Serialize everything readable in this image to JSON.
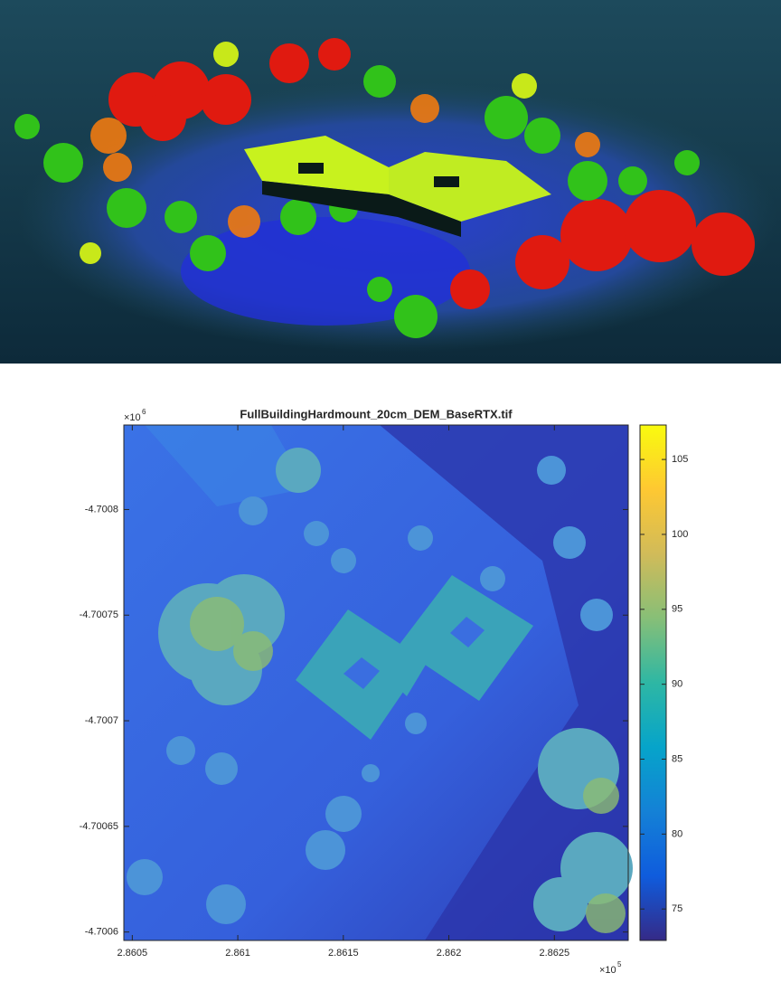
{
  "chart_data": {
    "type": "heatmap",
    "title": "FullBuildingHardmount_20cm_DEM_BaseRTX.tif",
    "xlim": [
      2.86046,
      2.86285
    ],
    "xticks": [
      2.8605,
      2.861,
      2.8615,
      2.862,
      2.8625
    ],
    "x_multiplier": {
      "base": "×10",
      "exponent": "5"
    },
    "ylim": [
      -4.70084,
      -4.700596
    ],
    "y_direction": "reverse",
    "yticks": [
      -4.7008,
      -4.70075,
      -4.7007,
      -4.70065,
      -4.7006
    ],
    "y_multiplier": {
      "base": "×10",
      "exponent": "6"
    },
    "colormap": "parula",
    "clim": [
      72.9,
      107.3
    ],
    "cticks": [
      75,
      80,
      85,
      90,
      95,
      100,
      105
    ]
  }
}
